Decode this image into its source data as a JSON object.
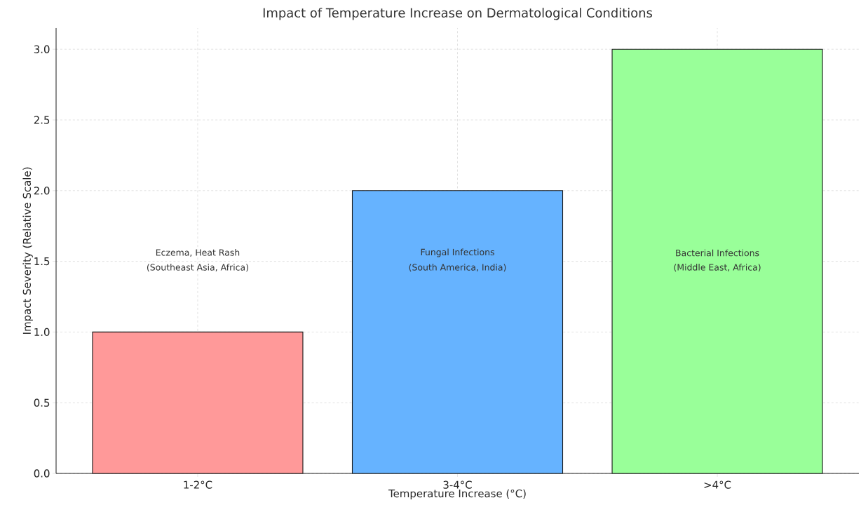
{
  "chart_data": {
    "type": "bar",
    "title": "Impact of Temperature Increase on Dermatological Conditions",
    "xlabel": "Temperature Increase (°C)",
    "ylabel": "Impact Severity (Relative Scale)",
    "categories": [
      "1-2°C",
      "3-4°C",
      ">4°C"
    ],
    "values": [
      1,
      2,
      3
    ],
    "colors": [
      "#ff9999",
      "#66b3ff",
      "#99ff99"
    ],
    "ylim": [
      0,
      3.15
    ],
    "yticks": [
      {
        "value": 0,
        "label": "0.0"
      },
      {
        "value": 0.5,
        "label": "0.5"
      },
      {
        "value": 1,
        "label": "1.0"
      },
      {
        "value": 1.5,
        "label": "1.5"
      },
      {
        "value": 2,
        "label": "2.0"
      },
      {
        "value": 2.5,
        "label": "2.5"
      },
      {
        "value": 3,
        "label": "3.0"
      }
    ],
    "grid": true,
    "annotations": [
      "Eczema, Heat Rash",
      "(Southeast Asia, Africa)",
      "Fungal Infections",
      "(South America, India)",
      "Bacterial Infections",
      "(Middle East, Africa)"
    ]
  }
}
